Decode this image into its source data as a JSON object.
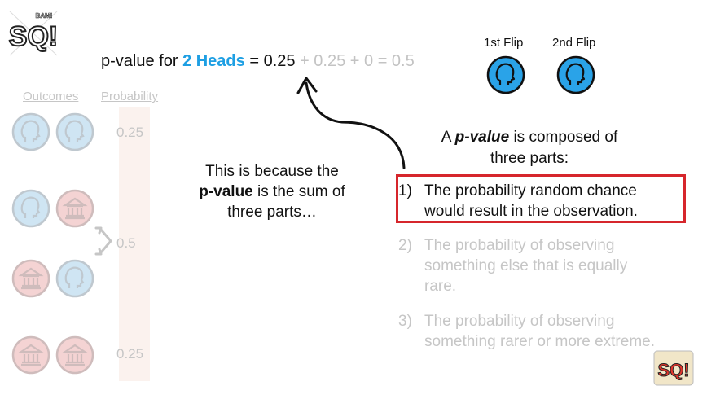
{
  "logo": {
    "text": "SQ!",
    "tagline": "Double BAM!"
  },
  "formula": {
    "prefix": "p-value for ",
    "highlight": "2 Heads",
    "equals": " = 0.25",
    "rest": " + 0.25 + 0 = 0.5"
  },
  "flips": [
    {
      "label": "1st Flip",
      "face": "heads"
    },
    {
      "label": "2nd Flip",
      "face": "heads"
    }
  ],
  "table": {
    "outcomes_header": "Outcomes",
    "probability_header": "Probability",
    "rows": [
      {
        "coins": [
          "heads",
          "heads"
        ],
        "probability": "0.25"
      },
      {
        "coins": [
          "heads",
          "tails"
        ],
        "probability": "0.5"
      },
      {
        "coins": [
          "tails",
          "heads"
        ],
        "probability": ""
      },
      {
        "coins": [
          "tails",
          "tails"
        ],
        "probability": "0.25"
      }
    ]
  },
  "middle": {
    "line1": "This is because the",
    "bold": "p-value",
    "line2_rest": " is the sum of",
    "line3": "three parts…"
  },
  "right": {
    "title_prefix": "A ",
    "title_bold": "p-value",
    "title_rest": " is composed of",
    "title_line2": "three parts:",
    "parts": [
      {
        "num": "1)",
        "line1": "The probability random chance",
        "line2": "would result in the observation.",
        "line3": ""
      },
      {
        "num": "2)",
        "line1": "The probability of observing",
        "line2": "something else that is equally",
        "line3": "rare."
      },
      {
        "num": "3)",
        "line1": "The probability of observing",
        "line2": "something rarer or more extreme.",
        "line3": ""
      }
    ]
  },
  "colors": {
    "heads_fill": "#2aa3e8",
    "heads_faded": "#cfe5f3",
    "tails_faded": "#f4d3d3",
    "highlight_blue": "#1e9fe3",
    "box_red": "#d6262c",
    "faded_text": "#c6c6c6"
  }
}
